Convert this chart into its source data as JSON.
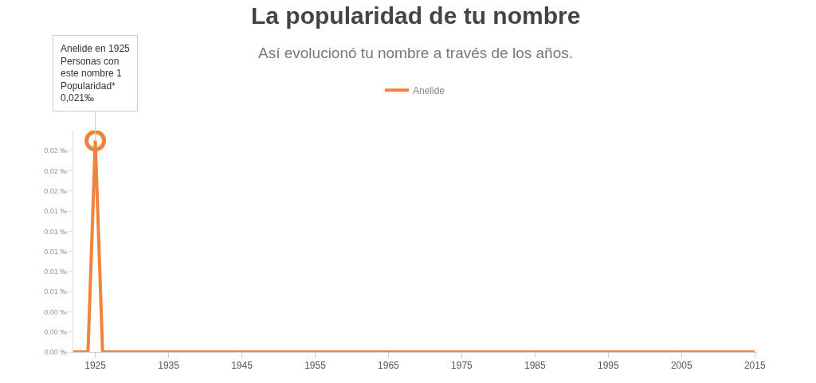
{
  "chart_data": {
    "type": "line",
    "title": "La popularidad de tu nombre",
    "subtitle": "Así evolucionó tu nombre a través de los años.",
    "x": [
      1922,
      1923,
      1924,
      1925,
      1926,
      1927,
      2015
    ],
    "series": [
      {
        "name": "Anelide",
        "color": "#f0843f",
        "values": [
          0,
          0,
          0,
          0.021,
          0,
          0,
          0
        ]
      }
    ],
    "xlim": [
      1922,
      2015.3
    ],
    "xticks": [
      1925,
      1935,
      1945,
      1955,
      1965,
      1975,
      1985,
      1995,
      2005,
      2015
    ],
    "ylim": [
      0,
      0.022
    ],
    "yticks": [
      {
        "value": 0,
        "label": "0.00 ‰"
      },
      {
        "value": 0.002,
        "label": "0.00 ‰"
      },
      {
        "value": 0.004,
        "label": "0.00 ‰"
      },
      {
        "value": 0.006,
        "label": "0.01 ‰"
      },
      {
        "value": 0.008,
        "label": "0.01 ‰"
      },
      {
        "value": 0.01,
        "label": "0.01 ‰"
      },
      {
        "value": 0.012,
        "label": "0.01 ‰"
      },
      {
        "value": 0.014,
        "label": "0.01 ‰"
      },
      {
        "value": 0.016,
        "label": "0.02 ‰"
      },
      {
        "value": 0.018,
        "label": "0.02 ‰"
      },
      {
        "value": 0.02,
        "label": "0.02 ‰"
      }
    ],
    "annotations": [
      {
        "text": "Anelide en 1925\nPersonas con\neste nombre 1\nPopularidad*\n0,021‰",
        "x": 1925,
        "y": 0.021
      }
    ],
    "grid": false,
    "legend": "top",
    "marker": "none",
    "line_style": "solid"
  }
}
